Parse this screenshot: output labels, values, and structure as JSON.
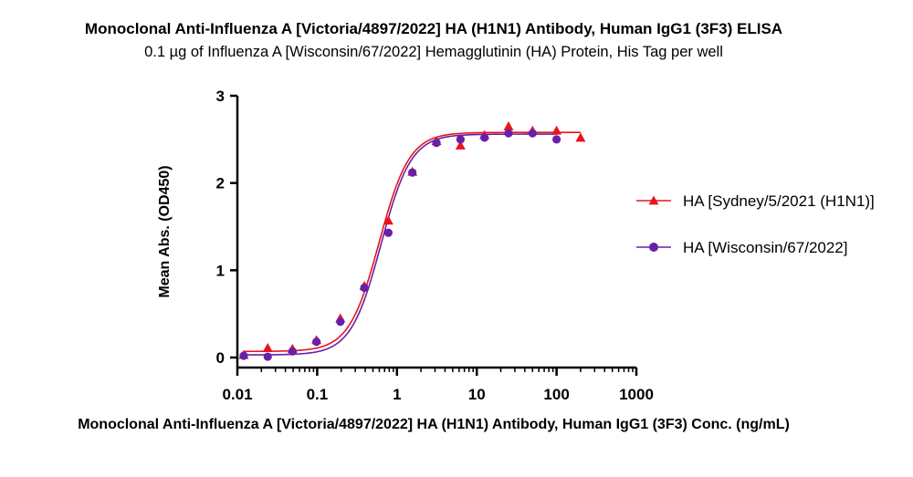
{
  "title": "Monoclonal Anti-Influenza A [Victoria/4897/2022] HA (H1N1) Antibody, Human IgG1 (3F3) ELISA",
  "subtitle": "0.1 µg of Influenza A [Wisconsin/67/2022] Hemagglutinin (HA) Protein, His Tag per well",
  "chart_data": {
    "type": "scatter",
    "title": "Monoclonal Anti-Influenza A [Victoria/4897/2022] HA (H1N1) Antibody, Human IgG1 (3F3) ELISA",
    "subtitle": "0.1 µg of Influenza A [Wisconsin/67/2022] Hemagglutinin (HA) Protein, His Tag per well",
    "xlabel": "Monoclonal Anti-Influenza A [Victoria/4897/2022] HA (H1N1) Antibody, Human IgG1 (3F3) Conc. (ng/mL)",
    "ylabel": "Mean Abs. (OD450)",
    "xscale": "log",
    "xlim": [
      0.01,
      1000
    ],
    "ylim": [
      0,
      3
    ],
    "x_ticks": [
      "0.01",
      "0.1",
      "1",
      "10",
      "100",
      "1000"
    ],
    "y_ticks": [
      "0",
      "1",
      "2",
      "3"
    ],
    "grid": false,
    "legend_position": "right",
    "fit": "4-parameter logistic curve per series",
    "series": [
      {
        "name": "HA [Sydney/5/2021 (H1N1)]",
        "color": "#e8141c",
        "marker": "triangle",
        "x": [
          0.012,
          0.024,
          0.049,
          0.098,
          0.195,
          0.39,
          0.78,
          1.56,
          3.125,
          6.25,
          12.5,
          25,
          50,
          100,
          200
        ],
        "y": [
          0.03,
          0.11,
          0.1,
          0.2,
          0.45,
          0.82,
          1.57,
          2.13,
          2.48,
          2.43,
          2.55,
          2.65,
          2.6,
          2.6,
          2.52
        ],
        "fit_params": {
          "bottom": 0.07,
          "top": 2.58,
          "ec50": 0.6,
          "hill": 2.3
        }
      },
      {
        "name": "HA [Wisconsin/67/2022]",
        "color": "#6a1fa8",
        "marker": "circle",
        "x": [
          0.012,
          0.024,
          0.049,
          0.098,
          0.195,
          0.39,
          0.78,
          1.56,
          3.125,
          6.25,
          12.5,
          25,
          50,
          100
        ],
        "y": [
          0.02,
          0.01,
          0.07,
          0.18,
          0.41,
          0.8,
          1.43,
          2.12,
          2.46,
          2.5,
          2.52,
          2.57,
          2.57,
          2.5
        ],
        "fit_params": {
          "bottom": 0.03,
          "top": 2.56,
          "ec50": 0.63,
          "hill": 2.3
        }
      }
    ]
  }
}
